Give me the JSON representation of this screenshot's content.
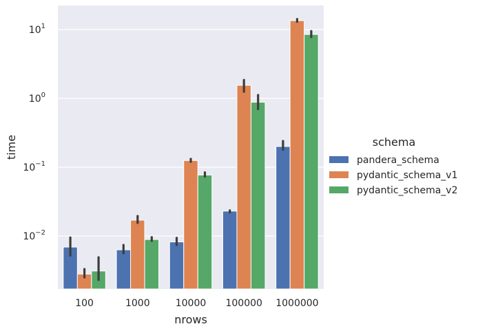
{
  "chart_data": {
    "type": "bar",
    "title": "",
    "xlabel": "nrows",
    "ylabel": "time",
    "yscale": "log",
    "ylim": [
      0.0015,
      20
    ],
    "grid": true,
    "legend_title": "schema",
    "legend_position": "right",
    "categories": [
      "100",
      "1000",
      "10000",
      "100000",
      "1000000"
    ],
    "y_ticks": [
      {
        "base": "10",
        "exp": "−2",
        "value": 0.01
      },
      {
        "base": "10",
        "exp": "−1",
        "value": 0.1
      },
      {
        "base": "10",
        "exp": "0",
        "value": 1
      },
      {
        "base": "10",
        "exp": "1",
        "value": 10
      }
    ],
    "series": [
      {
        "name": "pandera_schema",
        "color": "#4c72b0",
        "values": [
          0.0069,
          0.0063,
          0.0082,
          0.023,
          0.2
        ],
        "err_low": [
          0.0052,
          0.0056,
          0.0074,
          0.022,
          0.18
        ],
        "err_high": [
          0.0095,
          0.0074,
          0.0094,
          0.0235,
          0.24
        ]
      },
      {
        "name": "pydantic_schema_v1",
        "color": "#dd8452",
        "values": [
          0.0028,
          0.017,
          0.125,
          1.55,
          13.5
        ],
        "err_low": [
          0.0025,
          0.0155,
          0.12,
          1.25,
          13.0
        ],
        "err_high": [
          0.0033,
          0.0195,
          0.132,
          1.85,
          14.2
        ]
      },
      {
        "name": "pydantic_schema_v2",
        "color": "#55a868",
        "values": [
          0.0031,
          0.0089,
          0.077,
          0.88,
          8.5
        ],
        "err_low": [
          0.0023,
          0.0085,
          0.073,
          0.7,
          7.8
        ],
        "err_high": [
          0.0049,
          0.0096,
          0.084,
          1.12,
          9.5
        ]
      }
    ]
  }
}
